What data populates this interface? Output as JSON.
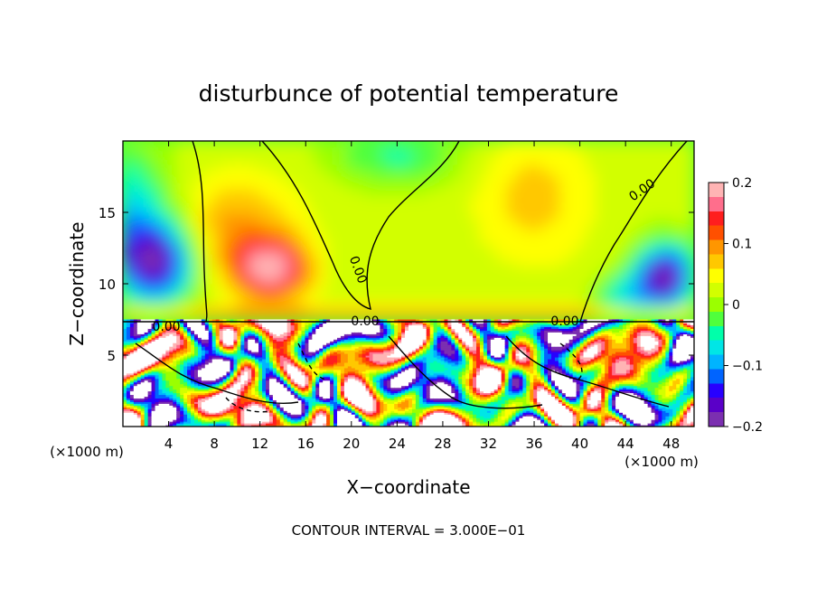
{
  "chart_data": {
    "type": "heatmap",
    "title": "disturbunce of potential temperature",
    "xlabel": "X−coordinate",
    "ylabel": "Z−coordinate",
    "x_unit": "(×1000 m)",
    "y_unit": "(×1000 m)",
    "xlim": [
      0,
      50
    ],
    "ylim": [
      0,
      20
    ],
    "x_ticks": [
      4,
      8,
      12,
      16,
      20,
      24,
      28,
      32,
      36,
      40,
      44,
      48
    ],
    "y_ticks": [
      5,
      10,
      15
    ],
    "colorbar": {
      "range": [
        -0.2,
        0.2
      ],
      "tick_labels": [
        "0.2",
        "0.1",
        "0",
        "−0.1",
        "−0.2"
      ],
      "tick_values": [
        0.2,
        0.1,
        0,
        -0.1,
        -0.2
      ]
    },
    "contour_labels": [
      "0.00",
      "0.00",
      "0.00",
      "0.00",
      "0.00"
    ],
    "footer": "CONTOUR INTERVAL = 3.000E−01",
    "notes": "Upper layer (z > 7.5 km) is smooth: mostly green (~0.02) with a warm red/orange lobe near x = 12–14 km, z = 9–13 km and cold blue/purple regions near the left and right boundaries. Lower layer (z < 7.5 km) is highly turbulent with alternating warm/cold filaments."
  },
  "colors": {
    "colormap": [
      "#7b2fb0",
      "#5a00c8",
      "#2800ff",
      "#0064ff",
      "#00b4ff",
      "#00e6e6",
      "#00ffaa",
      "#50ff3c",
      "#9bff00",
      "#d2ff00",
      "#ffff00",
      "#ffc800",
      "#ff9600",
      "#ff5000",
      "#ff1e1e",
      "#ff6e8c",
      "#ffb4b4"
    ]
  }
}
